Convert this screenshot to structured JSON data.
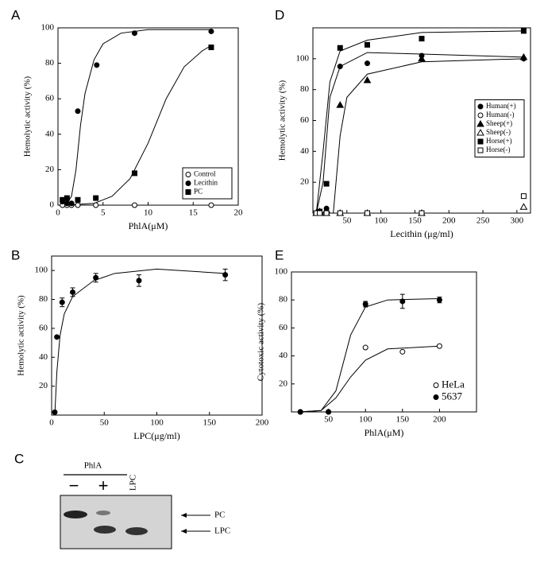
{
  "chart_data": [
    {
      "type": "scatter",
      "panel": "A",
      "xlabel": "PhlA(μM)",
      "ylabel": "Hemolytic activity (%)",
      "xlim": [
        0,
        20
      ],
      "xticks": [
        0,
        5,
        10,
        15,
        20
      ],
      "ylim": [
        0,
        100
      ],
      "yticks": [
        0,
        20,
        40,
        60,
        80,
        100
      ],
      "legend": "lower right",
      "series": [
        {
          "name": "Control",
          "color": "#000",
          "marker": "circle",
          "filled": false,
          "x": [
            0.5,
            1,
            1.5,
            2.2,
            4.2,
            8.5,
            17
          ],
          "values": [
            0,
            0,
            0,
            0,
            0,
            0,
            0
          ]
        },
        {
          "name": "Lecithin",
          "color": "#000",
          "marker": "circle",
          "filled": true,
          "x": [
            0.5,
            1,
            1.5,
            2.2,
            4.3,
            8.5,
            17
          ],
          "values": [
            2,
            1,
            1,
            53,
            79,
            97,
            98
          ]
        },
        {
          "name": "PC",
          "color": "#000",
          "marker": "square",
          "filled": true,
          "x": [
            0.5,
            1,
            2.2,
            4.2,
            8.5,
            17
          ],
          "values": [
            3,
            4,
            3,
            4,
            18,
            89
          ]
        }
      ],
      "fits": [
        {
          "x": [
            0.5,
            1,
            1.5,
            2,
            2.5,
            3,
            4,
            5,
            7,
            10,
            17
          ],
          "values": [
            0,
            1,
            5,
            20,
            45,
            63,
            82,
            91,
            97,
            99,
            99
          ]
        },
        {
          "x": [
            0.5,
            4,
            6,
            8,
            10,
            12,
            14,
            16,
            17
          ],
          "values": [
            0,
            1,
            5,
            15,
            35,
            60,
            78,
            87,
            90
          ]
        }
      ]
    },
    {
      "type": "scatter",
      "panel": "B",
      "xlabel": "LPC(μg/ml)",
      "ylabel": "Hemolytic activity (%)",
      "xlim": [
        0,
        200
      ],
      "xticks": [
        0,
        50,
        100,
        150,
        200
      ],
      "ylim": [
        0,
        110
      ],
      "yticks": [
        20,
        40,
        60,
        80,
        100
      ],
      "series": [
        {
          "color": "#000",
          "marker": "circle",
          "filled": true,
          "x": [
            3,
            5,
            10,
            20,
            42,
            83,
            165
          ],
          "values": [
            2,
            54,
            78,
            85,
            95,
            93,
            97
          ],
          "errors": [
            0,
            0,
            3,
            3,
            3,
            4,
            4
          ]
        }
      ],
      "fits": [
        {
          "x": [
            3,
            5,
            8,
            12,
            20,
            40,
            60,
            100,
            165
          ],
          "values": [
            0,
            30,
            55,
            70,
            82,
            93,
            98,
            101,
            98
          ]
        }
      ]
    },
    {
      "type": "scatter",
      "panel": "D",
      "xlabel": "Lecithin (μg/ml)",
      "ylabel": "Hemolytic activity (%)",
      "xlim": [
        0,
        320
      ],
      "xticks": [
        50,
        100,
        150,
        200,
        250,
        300
      ],
      "ylim": [
        0,
        120
      ],
      "yticks": [
        20,
        40,
        60,
        80,
        100
      ],
      "legend": "center right",
      "series": [
        {
          "name": "Human(+)",
          "color": "#000",
          "marker": "circle",
          "filled": true,
          "x": [
            5,
            10,
            20,
            40,
            80,
            160,
            310
          ],
          "values": [
            0,
            1,
            3,
            95,
            97,
            102,
            100
          ]
        },
        {
          "name": "Human(-)",
          "color": "#000",
          "marker": "circle",
          "filled": false,
          "x": [
            5,
            10,
            20,
            40,
            80,
            160
          ],
          "values": [
            0,
            0,
            0,
            0,
            0,
            0
          ]
        },
        {
          "name": "Sheep(+)",
          "color": "#000",
          "marker": "triangle",
          "filled": true,
          "x": [
            5,
            10,
            20,
            40,
            80,
            160,
            310
          ],
          "values": [
            0,
            1,
            2,
            70,
            86,
            100,
            101
          ]
        },
        {
          "name": "Sheep(-)",
          "color": "#000",
          "marker": "triangle",
          "filled": false,
          "x": [
            5,
            10,
            20,
            40,
            80,
            160,
            310
          ],
          "values": [
            0,
            0,
            0,
            0,
            0,
            0,
            4
          ]
        },
        {
          "name": "Horse(+)",
          "color": "#000",
          "marker": "square",
          "filled": true,
          "x": [
            5,
            10,
            20,
            40,
            80,
            160,
            310
          ],
          "values": [
            0,
            1,
            19,
            107,
            109,
            113,
            118
          ]
        },
        {
          "name": "Horse(-)",
          "color": "#000",
          "marker": "square",
          "filled": false,
          "x": [
            5,
            10,
            20,
            40,
            80,
            160,
            310
          ],
          "values": [
            0,
            0,
            0,
            0,
            0,
            0,
            11
          ]
        }
      ],
      "fits": [
        {
          "x": [
            5,
            15,
            25,
            40,
            80,
            160,
            310
          ],
          "values": [
            0,
            40,
            85,
            105,
            112,
            117,
            118
          ]
        },
        {
          "x": [
            5,
            15,
            25,
            40,
            80,
            160,
            310
          ],
          "values": [
            0,
            20,
            75,
            95,
            104,
            103,
            101
          ]
        },
        {
          "x": [
            5,
            30,
            40,
            50,
            80,
            160,
            310
          ],
          "values": [
            0,
            0,
            50,
            75,
            90,
            98,
            100
          ]
        }
      ]
    },
    {
      "type": "scatter",
      "panel": "E",
      "xlabel": "PhlA(μM)",
      "ylabel": "Cytotoxic activity (%)",
      "xlim": [
        0,
        250
      ],
      "xticks": [
        50,
        100,
        150,
        200
      ],
      "ylim": [
        0,
        100
      ],
      "yticks": [
        20,
        40,
        60,
        80,
        100
      ],
      "legend": "lower right",
      "series": [
        {
          "name": "HeLa",
          "color": "#000",
          "marker": "circle",
          "filled": false,
          "x": [
            12,
            50,
            100,
            150,
            200
          ],
          "values": [
            0,
            0,
            46,
            43,
            47
          ]
        },
        {
          "name": "5637",
          "color": "#000",
          "marker": "circle",
          "filled": true,
          "x": [
            12,
            50,
            100,
            150,
            200
          ],
          "values": [
            0,
            0,
            77,
            79,
            80
          ],
          "errors": [
            0,
            0,
            2,
            5,
            2
          ]
        }
      ],
      "fits": [
        {
          "x": [
            12,
            40,
            60,
            80,
            100,
            130,
            200
          ],
          "values": [
            0,
            1,
            10,
            25,
            37,
            45,
            47
          ]
        },
        {
          "x": [
            12,
            40,
            60,
            80,
            100,
            130,
            200
          ],
          "values": [
            0,
            1,
            15,
            55,
            75,
            80,
            81
          ]
        }
      ]
    }
  ],
  "gel": {
    "panel": "C",
    "group": "PhlA",
    "lanes": [
      "−",
      "+",
      "LPC"
    ],
    "bands": [
      "PC",
      "LPC"
    ]
  }
}
